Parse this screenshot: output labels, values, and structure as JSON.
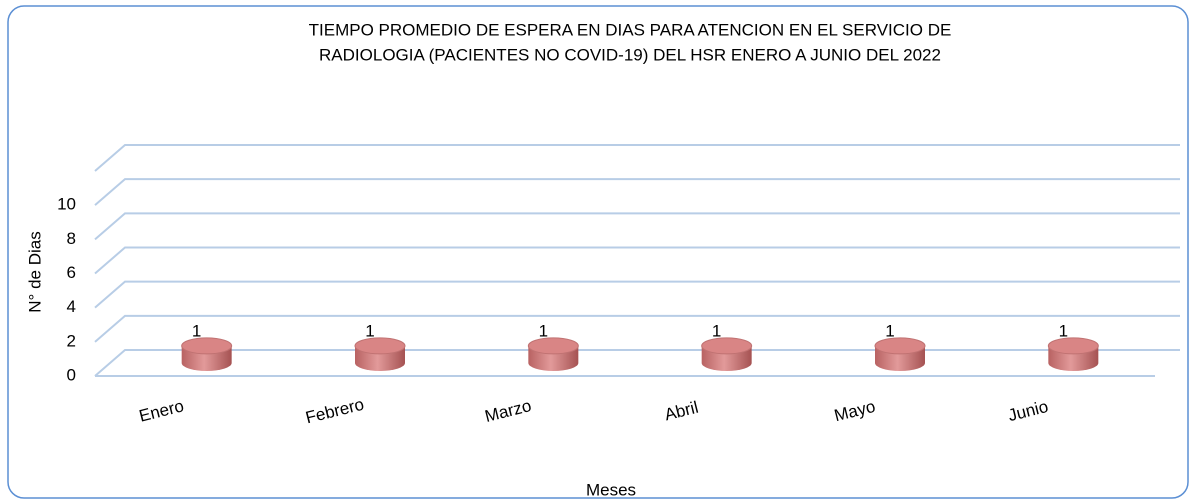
{
  "chart_data": {
    "type": "bar",
    "title": [
      "TIEMPO PROMEDIO DE ESPERA EN DIAS PARA ATENCION EN EL SERVICIO DE",
      "RADIOLOGIA (PACIENTES NO COVID-19)  DEL HSR ENERO A JUNIO DEL 2022"
    ],
    "x_label": "Meses",
    "y_label": "N° de Dias",
    "categories": [
      "Enero",
      "Febrero",
      "Marzo",
      "Abril",
      "Mayo",
      "Junio"
    ],
    "values": [
      1,
      1,
      1,
      1,
      1,
      1
    ],
    "color": "#d98585",
    "ylim": [
      0,
      12
    ],
    "yticks": [
      0,
      2,
      4,
      6,
      8,
      10
    ],
    "grid": true
  }
}
